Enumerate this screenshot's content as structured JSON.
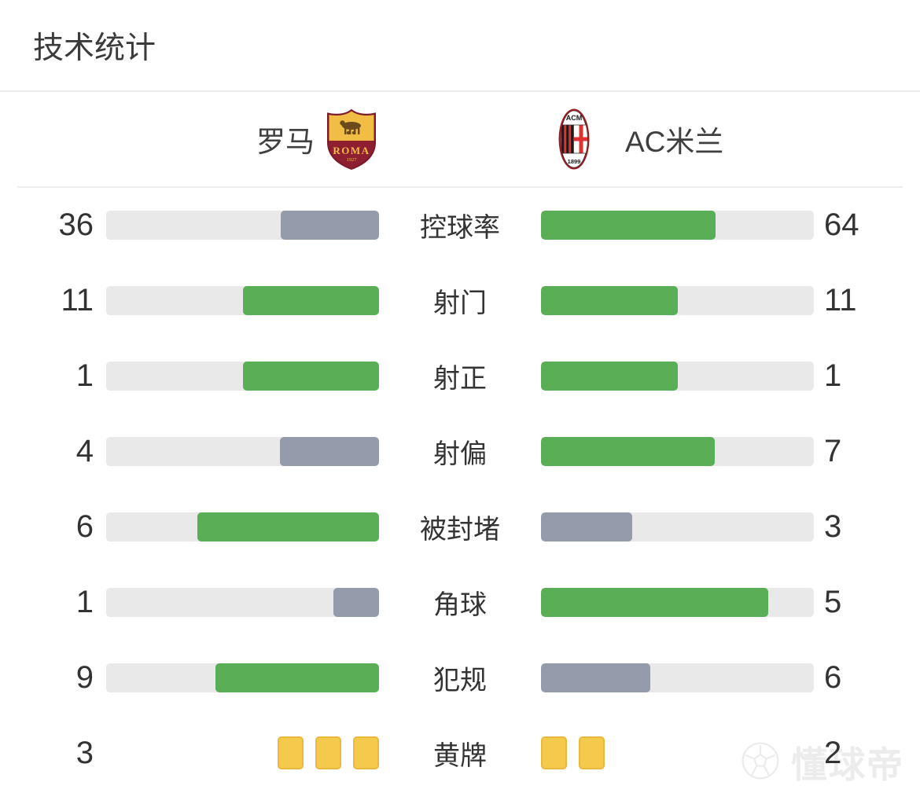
{
  "page": {
    "title": "技术统计"
  },
  "teams": {
    "home": {
      "name": "罗马",
      "crest_text": "ROMA",
      "crest_year": "1927"
    },
    "away": {
      "name": "AC米兰",
      "crest_text": "ACM",
      "crest_year": "1899"
    }
  },
  "colors": {
    "win_fill": "#5aae55",
    "lose_fill": "#949cab",
    "track": "#e9e9ea",
    "card_fill": "#f4ca4d",
    "card_border": "#e9b83c",
    "text": "#333333",
    "watermark": "#ececec",
    "roma_gold": "#f1bd45",
    "roma_maroon": "#8d1f30",
    "milan_red": "#e03030",
    "milan_dark_red": "#9a1d23"
  },
  "stats": [
    {
      "key": "possession",
      "label": "控球率",
      "home": 36,
      "away": 64
    },
    {
      "key": "shots",
      "label": "射门",
      "home": 11,
      "away": 11
    },
    {
      "key": "shots-on-target",
      "label": "射正",
      "home": 1,
      "away": 1
    },
    {
      "key": "shots-off-target",
      "label": "射偏",
      "home": 4,
      "away": 7
    },
    {
      "key": "blocked",
      "label": "被封堵",
      "home": 6,
      "away": 3
    },
    {
      "key": "corners",
      "label": "角球",
      "home": 1,
      "away": 5
    },
    {
      "key": "fouls",
      "label": "犯规",
      "home": 9,
      "away": 6
    },
    {
      "key": "yellow-cards",
      "label": "黄牌",
      "home": 3,
      "away": 2,
      "display": "cards"
    }
  ],
  "chart_data": {
    "type": "bar",
    "title": "技术统计",
    "categories": [
      "控球率",
      "射门",
      "射正",
      "射偏",
      "被封堵",
      "角球",
      "犯规",
      "黄牌"
    ],
    "series": [
      {
        "name": "罗马",
        "values": [
          36,
          11,
          1,
          4,
          6,
          1,
          9,
          3
        ]
      },
      {
        "name": "AC米兰",
        "values": [
          64,
          11,
          1,
          7,
          3,
          5,
          6,
          2
        ]
      }
    ],
    "layout": "mirrored horizontal comparison bars; fill length = value/(home+away); higher value green, lower value slate gray, ties green; yellow-cards row drawn as card icons",
    "legend_position": "top team header with crests",
    "grid": false
  },
  "watermark": {
    "text": "懂球帝"
  }
}
